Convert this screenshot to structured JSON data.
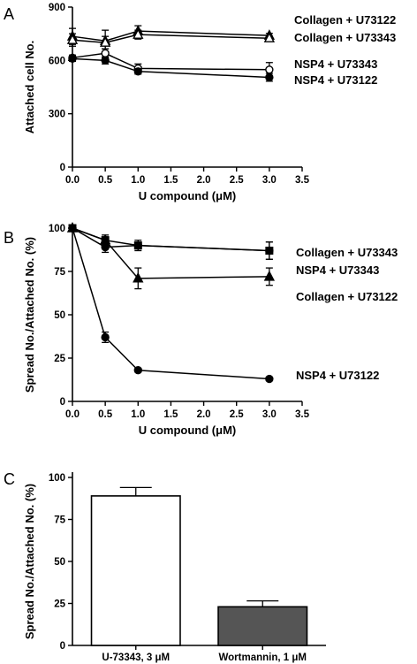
{
  "panels": {
    "a": "A",
    "b": "B",
    "c": "C"
  },
  "chart_data": [
    {
      "id": "A",
      "type": "line",
      "xlabel": "U compound (μM)",
      "ylabel": "Attached cell No.",
      "xlim": [
        0,
        3.5
      ],
      "ylim": [
        0,
        900
      ],
      "xticks": [
        "0.0",
        "0.5",
        "1.0",
        "1.5",
        "2.0",
        "2.5",
        "3.0",
        "3.5"
      ],
      "yticks": [
        "0",
        "300",
        "600",
        "900"
      ],
      "x": [
        0,
        0.5,
        1.0,
        3.0
      ],
      "series": [
        {
          "name": "Collagen + U73122",
          "marker": "triangle-filled",
          "values": [
            735,
            710,
            765,
            740
          ],
          "errors": [
            45,
            60,
            30,
            12
          ]
        },
        {
          "name": "Collagen + U73343",
          "marker": "triangle-open",
          "values": [
            715,
            700,
            745,
            725
          ],
          "errors": [
            35,
            35,
            25,
            12
          ]
        },
        {
          "name": "NSP4 + U73343",
          "marker": "circle-open",
          "values": [
            615,
            640,
            555,
            548
          ],
          "errors": [
            15,
            25,
            25,
            40
          ]
        },
        {
          "name": "NSP4 + U73122",
          "marker": "circle-filled",
          "values": [
            610,
            600,
            538,
            505
          ],
          "errors": [
            15,
            20,
            15,
            22
          ]
        }
      ]
    },
    {
      "id": "B",
      "type": "line",
      "xlabel": "U compound (μM)",
      "ylabel": "Spread No./Attached No. (%)",
      "xlim": [
        0,
        3.5
      ],
      "ylim": [
        0,
        100
      ],
      "xticks": [
        "0.0",
        "0.5",
        "1.0",
        "1.5",
        "2.0",
        "2.5",
        "3.0",
        "3.5"
      ],
      "yticks": [
        "0",
        "25",
        "50",
        "75",
        "100"
      ],
      "x": [
        0,
        0.5,
        1.0,
        3.0
      ],
      "series": [
        {
          "name": "Collagen + U73343",
          "marker": "square-filled",
          "values": [
            100,
            93,
            90,
            87
          ],
          "errors": [
            1,
            2,
            2,
            5
          ]
        },
        {
          "name": "NSP4 + U73343",
          "marker": "circle-filled",
          "values": [
            100,
            89,
            90,
            87
          ],
          "errors": [
            1,
            3,
            3,
            5
          ]
        },
        {
          "name": "Collagen + U73122",
          "marker": "triangle-filled",
          "values": [
            100,
            93,
            71,
            72
          ],
          "errors": [
            1,
            3,
            6,
            5
          ]
        },
        {
          "name": "NSP4 + U73122",
          "marker": "circle-filled",
          "values": [
            100,
            37,
            18,
            13
          ],
          "errors": [
            1,
            3,
            1,
            1
          ]
        }
      ]
    },
    {
      "id": "C",
      "type": "bar",
      "ylabel": "Spread No./Attached No. (%)",
      "ylim": [
        0,
        100
      ],
      "yticks": [
        "0",
        "25",
        "50",
        "75",
        "100"
      ],
      "categories": [
        "U-73343, 3 μM",
        "Wortmannin, 1 μM"
      ],
      "values": [
        89,
        23
      ],
      "errors": [
        5,
        3.5
      ],
      "colors": [
        "#ffffff",
        "#555555"
      ]
    }
  ]
}
